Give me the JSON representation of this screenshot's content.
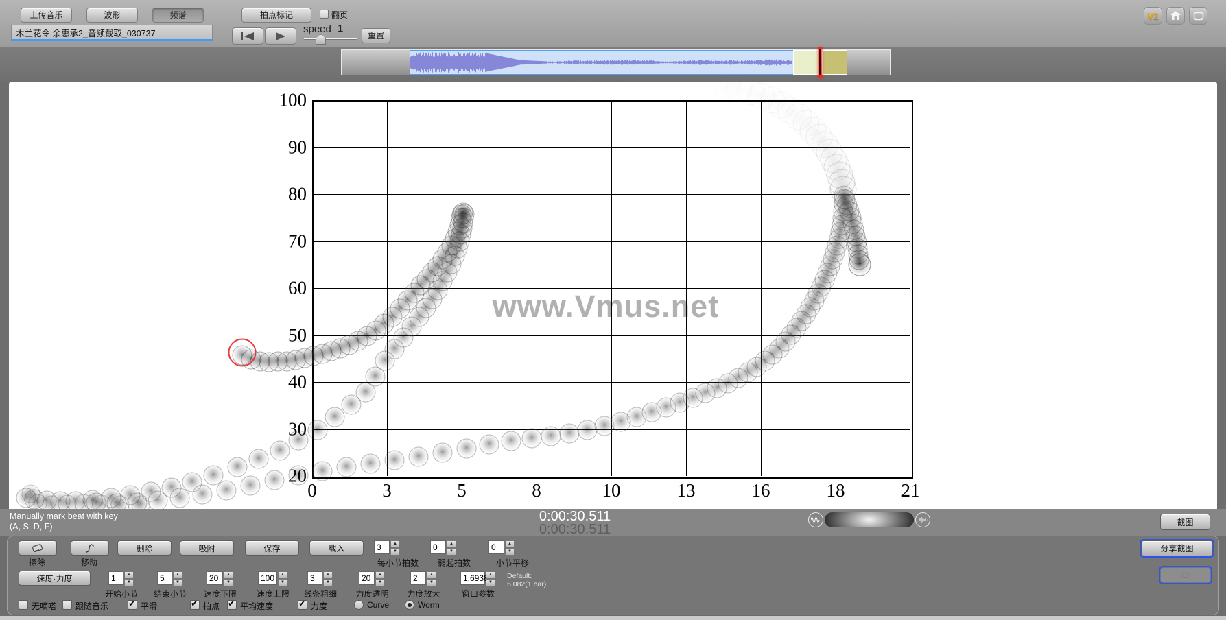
{
  "topbar": {
    "buttons": [
      {
        "label": "上传音乐",
        "active": false
      },
      {
        "label": "波形",
        "active": false
      },
      {
        "label": "频谱",
        "active": true
      },
      {
        "label": "拍点标记",
        "active": false
      }
    ],
    "page_turn_label": "翻页",
    "page_turn_checked": false,
    "filename": "木兰花令 余惠承2_音频截取_030737",
    "speed_label": "speed",
    "speed_value": "1",
    "reset_label": "重置",
    "version_badge": "V2"
  },
  "status": {
    "hint_line1": "Manually mark beat with key",
    "hint_line2": "(A, S, D, F)",
    "time_main": "0:00:30.511",
    "time_sub": "0:00:30.511",
    "snapshot_label": "截图"
  },
  "toolbar": {
    "eraser_label": "擦除",
    "move_label": "移动",
    "tool_buttons": [
      "删除",
      "吸附",
      "保存",
      "载入"
    ],
    "spinners_row1": [
      {
        "value": "3",
        "label": "每小节拍数"
      },
      {
        "value": "0",
        "label": "弱起拍数"
      },
      {
        "value": "0",
        "label": "小节平移"
      }
    ],
    "mode_button": "速度·力度",
    "spinners_row2": [
      {
        "value": "1",
        "label": "开始小节"
      },
      {
        "value": "5",
        "label": "结束小节"
      },
      {
        "value": "20",
        "label": "速度下限"
      },
      {
        "value": "100",
        "label": "速度上限"
      },
      {
        "value": "3",
        "label": "线条粗细"
      },
      {
        "value": "20",
        "label": "力度透明"
      },
      {
        "value": "2",
        "label": "力度放大"
      },
      {
        "value": "1.6938",
        "label": "窗口参数"
      }
    ],
    "default_note_line1": "Default:",
    "default_note_line2": "5.082(1 bar)",
    "checkboxes": [
      {
        "label": "无嘀嗒",
        "checked": false
      },
      {
        "label": "跟随音乐",
        "checked": false
      },
      {
        "label": "平滑",
        "checked": true
      },
      {
        "label": "拍点",
        "checked": true
      },
      {
        "label": "平均速度",
        "checked": true
      },
      {
        "label": "力度",
        "checked": true
      }
    ],
    "radios": [
      {
        "label": "Curve",
        "selected": false
      },
      {
        "label": "Worm",
        "selected": true
      }
    ],
    "share_label": "分享截图",
    "ioi_label": "IOI"
  },
  "chart_data": {
    "type": "scatter",
    "subtype": "performance-worm",
    "watermark": "www.Vmus.net",
    "xlim": [
      0,
      21
    ],
    "ylim": [
      20,
      100
    ],
    "x_ticks": [
      "0",
      "3",
      "5",
      "8",
      "10",
      "13",
      "16",
      "18",
      "21"
    ],
    "y_ticks": [
      "100",
      "90",
      "80",
      "70",
      "60",
      "50",
      "40",
      "30",
      "20"
    ],
    "grid": true,
    "accent_color": "#e42828",
    "series": [
      {
        "name": "phrase-1-rise",
        "opacity": 0.58,
        "dot_size": 27,
        "points": [
          [
            -2.46,
            45.7
          ],
          [
            -2.14,
            44.8
          ],
          [
            -1.83,
            44.4
          ],
          [
            -1.52,
            44.2
          ],
          [
            -1.2,
            44.4
          ],
          [
            -0.89,
            44.4
          ],
          [
            -0.58,
            44.7
          ],
          [
            -0.26,
            45.1
          ],
          [
            0.05,
            45.6
          ],
          [
            0.36,
            46.0
          ],
          [
            0.67,
            46.6
          ],
          [
            0.99,
            47.2
          ],
          [
            1.3,
            47.9
          ],
          [
            1.61,
            48.8
          ],
          [
            1.93,
            49.8
          ],
          [
            2.24,
            51.0
          ],
          [
            2.53,
            52.4
          ],
          [
            2.82,
            53.9
          ],
          [
            3.08,
            55.6
          ],
          [
            3.35,
            57.4
          ],
          [
            3.59,
            59.0
          ],
          [
            3.8,
            60.6
          ],
          [
            4.02,
            61.9
          ],
          [
            4.21,
            63.4
          ],
          [
            4.41,
            64.7
          ],
          [
            4.58,
            66.1
          ],
          [
            4.74,
            67.6
          ],
          [
            4.89,
            69.1
          ],
          [
            5.01,
            70.5
          ],
          [
            5.11,
            72.0
          ],
          [
            5.18,
            73.4
          ],
          [
            5.23,
            74.9
          ],
          [
            5.25,
            75.6
          ],
          [
            5.3,
            76.1
          ],
          [
            5.35,
            75.8
          ]
        ]
      },
      {
        "name": "phrase-1-fall",
        "opacity": 0.52,
        "dot_size": 27,
        "points": [
          [
            5.32,
            74.9
          ],
          [
            5.3,
            73.9
          ],
          [
            5.27,
            72.7
          ],
          [
            5.23,
            71.4
          ],
          [
            5.18,
            69.9
          ],
          [
            5.11,
            68.5
          ],
          [
            5.01,
            66.9
          ],
          [
            4.89,
            65.1
          ],
          [
            4.74,
            63.4
          ],
          [
            4.58,
            61.5
          ],
          [
            4.41,
            59.6
          ],
          [
            4.21,
            57.7
          ],
          [
            4.0,
            55.8
          ],
          [
            3.76,
            53.9
          ],
          [
            3.49,
            51.8
          ],
          [
            3.2,
            49.5
          ],
          [
            2.89,
            47.0
          ],
          [
            2.55,
            44.5
          ],
          [
            2.22,
            41.2
          ],
          [
            1.88,
            37.8
          ],
          [
            1.37,
            35.2
          ],
          [
            0.79,
            32.6
          ],
          [
            0.19,
            29.8
          ],
          [
            -0.48,
            27.6
          ],
          [
            -1.13,
            25.4
          ],
          [
            -1.88,
            23.7
          ],
          [
            -2.63,
            21.9
          ],
          [
            -3.47,
            20.2
          ],
          [
            -4.21,
            18.7
          ],
          [
            -4.94,
            17.5
          ],
          [
            -5.66,
            16.6
          ],
          [
            -6.38,
            15.9
          ],
          [
            -7.06,
            15.3
          ],
          [
            -7.71,
            14.9
          ],
          [
            -8.31,
            14.6
          ],
          [
            -8.84,
            14.6
          ],
          [
            -9.32,
            14.7
          ],
          [
            -9.75,
            15.0
          ],
          [
            -10.04,
            15.3
          ]
        ]
      },
      {
        "name": "start-cluster",
        "opacity": 0.4,
        "dot_size": 25,
        "points": [
          [
            -9.63,
            14.2
          ],
          [
            -9.15,
            13.9
          ],
          [
            -8.6,
            14.0
          ],
          [
            -8.02,
            14.2
          ],
          [
            -7.39,
            14.0
          ],
          [
            -6.74,
            13.9
          ],
          [
            -6.02,
            13.9
          ],
          [
            -9.87,
            16.2
          ]
        ]
      },
      {
        "name": "phrase-2-long-build",
        "opacity": 0.5,
        "dot_size": 27,
        "points": [
          [
            -7.59,
            14.3
          ],
          [
            -6.86,
            14.2
          ],
          [
            -6.14,
            14.3
          ],
          [
            -5.42,
            14.7
          ],
          [
            -4.65,
            15.3
          ],
          [
            -3.85,
            16.1
          ],
          [
            -3.01,
            16.9
          ],
          [
            -2.17,
            18.0
          ],
          [
            -1.32,
            19.1
          ],
          [
            -0.48,
            20.2
          ],
          [
            0.36,
            21.0
          ],
          [
            1.2,
            21.9
          ],
          [
            2.05,
            22.6
          ],
          [
            2.89,
            23.4
          ],
          [
            3.73,
            24.1
          ],
          [
            4.58,
            25.0
          ],
          [
            5.42,
            25.8
          ],
          [
            6.21,
            26.7
          ],
          [
            6.98,
            27.5
          ],
          [
            7.71,
            28.0
          ],
          [
            8.38,
            28.5
          ],
          [
            9.03,
            29.1
          ],
          [
            9.66,
            29.8
          ],
          [
            10.26,
            30.7
          ],
          [
            10.84,
            31.5
          ],
          [
            11.39,
            32.6
          ],
          [
            11.92,
            33.6
          ],
          [
            12.43,
            34.6
          ],
          [
            12.91,
            35.6
          ],
          [
            13.37,
            36.6
          ],
          [
            13.8,
            37.7
          ],
          [
            14.21,
            38.7
          ],
          [
            14.6,
            39.7
          ],
          [
            14.96,
            40.9
          ],
          [
            15.29,
            42.0
          ],
          [
            15.61,
            43.2
          ],
          [
            15.9,
            44.5
          ],
          [
            16.16,
            45.8
          ],
          [
            16.4,
            47.2
          ],
          [
            16.62,
            48.6
          ],
          [
            16.81,
            50.1
          ],
          [
            17.0,
            51.5
          ],
          [
            17.17,
            53.0
          ],
          [
            17.34,
            54.5
          ],
          [
            17.48,
            55.9
          ],
          [
            17.63,
            57.4
          ],
          [
            17.75,
            58.8
          ],
          [
            17.87,
            60.3
          ],
          [
            17.99,
            61.8
          ],
          [
            18.09,
            63.2
          ],
          [
            18.18,
            64.7
          ],
          [
            18.28,
            66.1
          ],
          [
            18.35,
            67.6
          ],
          [
            18.42,
            69.1
          ],
          [
            18.5,
            70.5
          ],
          [
            18.54,
            72.0
          ],
          [
            18.59,
            73.4
          ],
          [
            18.62,
            74.9
          ],
          [
            18.64,
            76.4
          ],
          [
            18.66,
            77.8
          ],
          [
            18.66,
            79.0
          ],
          [
            18.66,
            79.7
          ]
        ]
      },
      {
        "name": "phrase-2-release",
        "opacity": 0.58,
        "dot_size": 27,
        "points": [
          [
            18.71,
            78.8
          ],
          [
            18.79,
            77.7
          ],
          [
            18.86,
            76.4
          ],
          [
            18.93,
            75.0
          ],
          [
            18.98,
            73.7
          ],
          [
            19.03,
            72.4
          ],
          [
            19.08,
            71.1
          ],
          [
            19.12,
            69.8
          ],
          [
            19.15,
            68.5
          ],
          [
            19.17,
            67.2
          ],
          [
            19.2,
            66.0
          ]
        ]
      },
      {
        "name": "worm-head",
        "opacity": 0.8,
        "dot_size": 31,
        "points": [
          [
            19.22,
            65.0
          ]
        ]
      },
      {
        "name": "ghost-trail",
        "ghost": true,
        "dot_size": 37,
        "points": [
          [
            18.64,
            81.0,
            0.3
          ],
          [
            18.59,
            82.5,
            0.26
          ],
          [
            18.52,
            84.1,
            0.22
          ],
          [
            18.42,
            85.7,
            0.19
          ],
          [
            18.3,
            87.3,
            0.16
          ],
          [
            18.16,
            88.9,
            0.14
          ],
          [
            17.99,
            90.5,
            0.12
          ],
          [
            17.8,
            92.1,
            0.1
          ],
          [
            17.58,
            93.6,
            0.09
          ],
          [
            17.34,
            95.0,
            0.08
          ],
          [
            17.08,
            96.5,
            0.07
          ],
          [
            16.79,
            97.8,
            0.06
          ],
          [
            16.47,
            99.0,
            0.055
          ],
          [
            16.14,
            100.0,
            0.05
          ],
          [
            15.78,
            100.9,
            0.045
          ],
          [
            15.39,
            101.8,
            0.04
          ],
          [
            14.98,
            102.5,
            0.035
          ],
          [
            14.55,
            103.1,
            0.03
          ]
        ]
      },
      {
        "name": "current-beat-marker",
        "marker": "red-ring",
        "points": [
          [
            -2.46,
            46.3
          ]
        ]
      }
    ]
  }
}
